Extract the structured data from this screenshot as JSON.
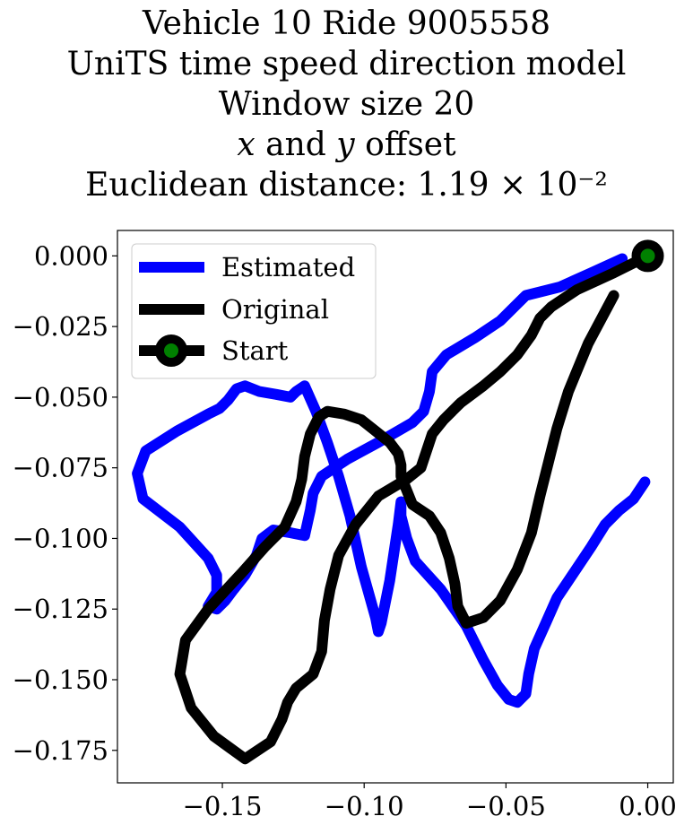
{
  "chart_data": {
    "type": "line",
    "title_lines": [
      "Vehicle 10 Ride 9005558",
      "UniTS time speed direction model",
      "Window size 20",
      "𝑥 and 𝑦 offset",
      "Euclidean distance: 1.19 × 10⁻²"
    ],
    "xlabel": "",
    "ylabel": "",
    "xlim": [
      -0.187,
      0.009
    ],
    "ylim": [
      -0.1865,
      0.009
    ],
    "x_ticks": [
      -0.15,
      -0.1,
      -0.05,
      0.0
    ],
    "x_tick_labels": [
      "−0.15",
      "−0.10",
      "−0.05",
      "0.00"
    ],
    "y_ticks": [
      0.0,
      -0.025,
      -0.05,
      -0.075,
      -0.1,
      -0.125,
      -0.15,
      -0.175
    ],
    "y_tick_labels": [
      "0.000",
      "−0.025",
      "−0.050",
      "−0.075",
      "−0.100",
      "−0.125",
      "−0.150",
      "−0.175"
    ],
    "grid": false,
    "legend_position": "top-left",
    "legend": [
      "Estimated",
      "Original",
      "Start"
    ],
    "series": [
      {
        "name": "Estimated",
        "color": "#0000ff",
        "x": [
          -0.009,
          -0.02,
          -0.031,
          -0.043,
          -0.046,
          -0.052,
          -0.061,
          -0.071,
          -0.076,
          -0.077,
          -0.079,
          -0.083,
          -0.095,
          -0.106,
          -0.115,
          -0.118,
          -0.119,
          -0.121,
          -0.126,
          -0.132,
          -0.136,
          -0.138,
          -0.142,
          -0.146,
          -0.149,
          -0.152,
          -0.155,
          -0.152,
          -0.152,
          -0.155,
          -0.165,
          -0.178,
          -0.18,
          -0.177,
          -0.166,
          -0.155,
          -0.151,
          -0.148,
          -0.145,
          -0.142,
          -0.137,
          -0.131,
          -0.126,
          -0.124,
          -0.121,
          -0.117,
          -0.113,
          -0.109,
          -0.105,
          -0.101,
          -0.096,
          -0.095,
          -0.094,
          -0.091,
          -0.088,
          -0.087,
          -0.087,
          -0.085,
          -0.082,
          -0.073,
          -0.064,
          -0.058,
          -0.053,
          -0.049,
          -0.046,
          -0.043,
          -0.042,
          -0.04,
          -0.036,
          -0.032,
          -0.026,
          -0.02,
          -0.015,
          -0.01,
          -0.005,
          -0.001
        ],
        "y": [
          -0.001,
          -0.006,
          -0.011,
          -0.014,
          -0.017,
          -0.023,
          -0.029,
          -0.035,
          -0.041,
          -0.048,
          -0.055,
          -0.059,
          -0.066,
          -0.072,
          -0.078,
          -0.084,
          -0.09,
          -0.099,
          -0.098,
          -0.097,
          -0.1,
          -0.106,
          -0.113,
          -0.118,
          -0.122,
          -0.125,
          -0.124,
          -0.119,
          -0.113,
          -0.107,
          -0.096,
          -0.086,
          -0.077,
          -0.069,
          -0.062,
          -0.056,
          -0.054,
          -0.051,
          -0.047,
          -0.046,
          -0.048,
          -0.049,
          -0.05,
          -0.048,
          -0.046,
          -0.055,
          -0.066,
          -0.078,
          -0.092,
          -0.11,
          -0.128,
          -0.133,
          -0.13,
          -0.115,
          -0.095,
          -0.087,
          -0.092,
          -0.1,
          -0.108,
          -0.118,
          -0.131,
          -0.143,
          -0.152,
          -0.157,
          -0.158,
          -0.155,
          -0.148,
          -0.139,
          -0.13,
          -0.121,
          -0.112,
          -0.103,
          -0.095,
          -0.09,
          -0.086,
          -0.08
        ]
      },
      {
        "name": "Original",
        "color": "#000000",
        "x": [
          0.0,
          -0.012,
          -0.025,
          -0.034,
          -0.038,
          -0.041,
          -0.046,
          -0.052,
          -0.058,
          -0.066,
          -0.072,
          -0.076,
          -0.078,
          -0.08,
          -0.085,
          -0.095,
          -0.103,
          -0.109,
          -0.112,
          -0.114,
          -0.115,
          -0.118,
          -0.124,
          -0.127,
          -0.129,
          -0.133,
          -0.142,
          -0.153,
          -0.161,
          -0.165,
          -0.163,
          -0.155,
          -0.143,
          -0.135,
          -0.128,
          -0.124,
          -0.122,
          -0.121,
          -0.119,
          -0.116,
          -0.113,
          -0.107,
          -0.101,
          -0.096,
          -0.091,
          -0.088,
          -0.087,
          -0.087,
          -0.085,
          -0.083,
          -0.077,
          -0.073,
          -0.07,
          -0.068,
          -0.067,
          -0.064,
          -0.058,
          -0.052,
          -0.046,
          -0.041,
          -0.038,
          -0.035,
          -0.032,
          -0.028,
          -0.021,
          -0.012
        ],
        "y": [
          0.0,
          -0.006,
          -0.012,
          -0.018,
          -0.022,
          -0.028,
          -0.035,
          -0.041,
          -0.046,
          -0.052,
          -0.058,
          -0.063,
          -0.069,
          -0.075,
          -0.079,
          -0.085,
          -0.095,
          -0.106,
          -0.118,
          -0.129,
          -0.14,
          -0.148,
          -0.153,
          -0.158,
          -0.164,
          -0.172,
          -0.178,
          -0.17,
          -0.16,
          -0.148,
          -0.136,
          -0.125,
          -0.112,
          -0.103,
          -0.096,
          -0.087,
          -0.079,
          -0.071,
          -0.063,
          -0.057,
          -0.055,
          -0.056,
          -0.058,
          -0.062,
          -0.066,
          -0.07,
          -0.074,
          -0.078,
          -0.083,
          -0.088,
          -0.092,
          -0.098,
          -0.107,
          -0.116,
          -0.124,
          -0.13,
          -0.128,
          -0.122,
          -0.111,
          -0.098,
          -0.085,
          -0.073,
          -0.061,
          -0.048,
          -0.031,
          -0.014
        ]
      }
    ],
    "start_point": {
      "x": 0.0,
      "y": 0.0,
      "label": "Start",
      "marker_edge": "#000000",
      "marker_face": "#008000"
    }
  }
}
